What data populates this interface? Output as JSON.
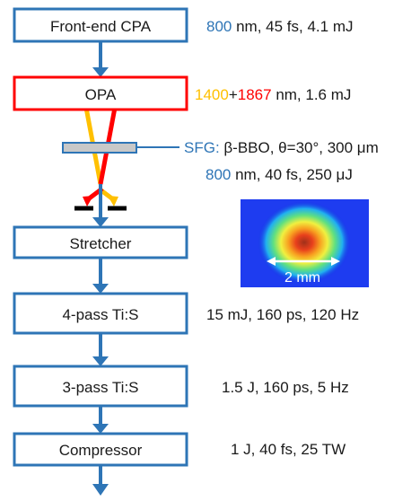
{
  "colors": {
    "blue": "#2e75b6",
    "red": "#ff0000",
    "orange": "#ffc000",
    "text": "#1a1a1a",
    "crystal": "#c8c8c8",
    "black": "#000000"
  },
  "boxes": {
    "front_end": "Front-end CPA",
    "opa": "OPA",
    "stretcher": "Stretcher",
    "four_pass": "4-pass Ti:S",
    "three_pass": "3-pass Ti:S",
    "compressor": "Compressor"
  },
  "labels": {
    "front_end": {
      "wavelength": "800",
      "rest": " nm, 45 fs, 4.1 mJ"
    },
    "opa": {
      "wl1": "1400",
      "plus": "+",
      "wl2": "1867",
      "rest": " nm, 1.6 mJ"
    },
    "sfg": {
      "prefix": "SFG:",
      "rest": " β-BBO, θ=30°, 300 μm"
    },
    "sfg_out": {
      "wavelength": "800",
      "rest": " nm, 40 fs, 250 μJ"
    },
    "four_pass": "15 mJ, 160 ps, 120 Hz",
    "three_pass": "1.5 J, 160 ps, 5 Hz",
    "compressor": "1 J, 40 fs, 25 TW"
  },
  "beam_image": {
    "scale_label": "2 mm"
  }
}
